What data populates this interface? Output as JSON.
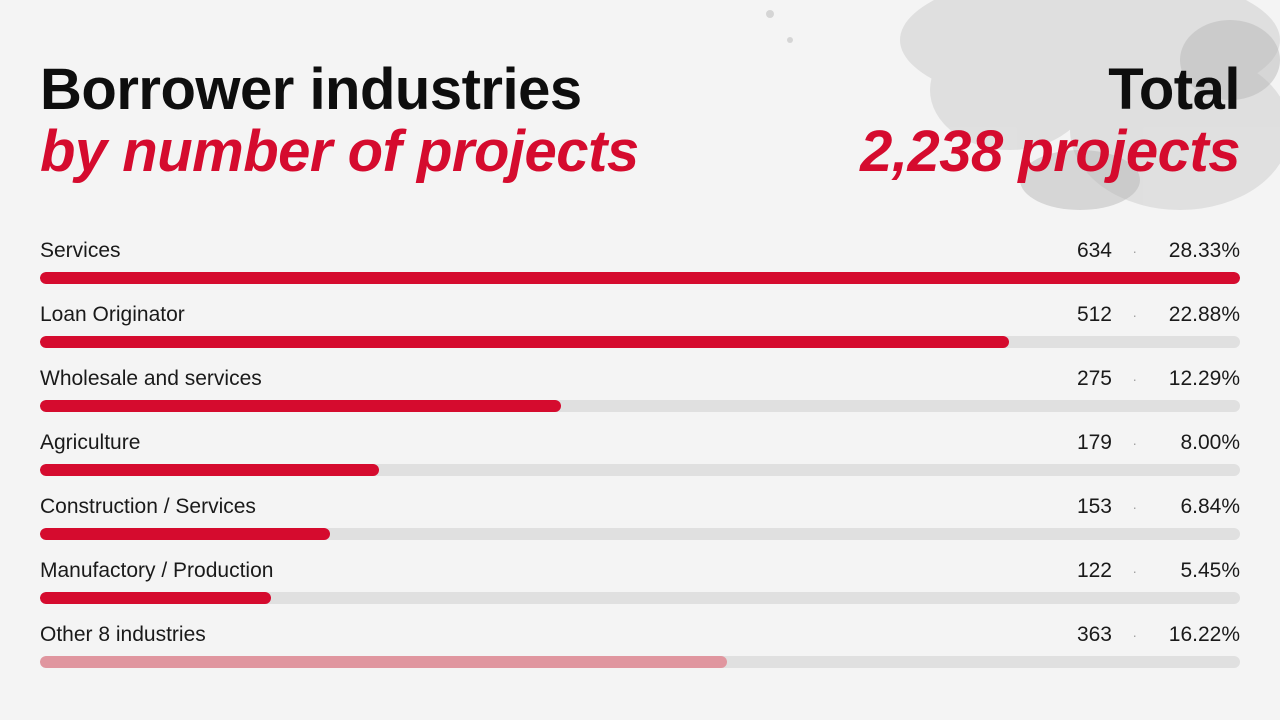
{
  "header": {
    "title_line1": "Borrower industries",
    "title_line2": "by number of projects",
    "total_label": "Total",
    "total_value": "2,238 projects"
  },
  "colors": {
    "accent": "#d50b2e",
    "muted_accent": "#e0969f",
    "track": "#e0e0e0",
    "background": "#f4f4f4"
  },
  "chart_data": {
    "type": "bar",
    "orientation": "horizontal",
    "title": "Borrower industries by number of projects",
    "total": 2238,
    "categories": [
      "Services",
      "Loan Originator",
      "Wholesale and services",
      "Agriculture",
      "Construction / Services",
      "Manufactory / Production",
      "Other 8 industries"
    ],
    "values": [
      634,
      512,
      275,
      179,
      153,
      122,
      363
    ],
    "value_labels": [
      "634",
      "512",
      "275",
      "179",
      "153",
      "122",
      "363"
    ],
    "percent_labels": [
      "28.33%",
      "22.88%",
      "12.29%",
      "8.00%",
      "6.84%",
      "5.45%",
      "16.22%"
    ],
    "separator": "·",
    "xlim": [
      0,
      634
    ],
    "highlight": [
      true,
      true,
      true,
      true,
      true,
      true,
      false
    ]
  }
}
